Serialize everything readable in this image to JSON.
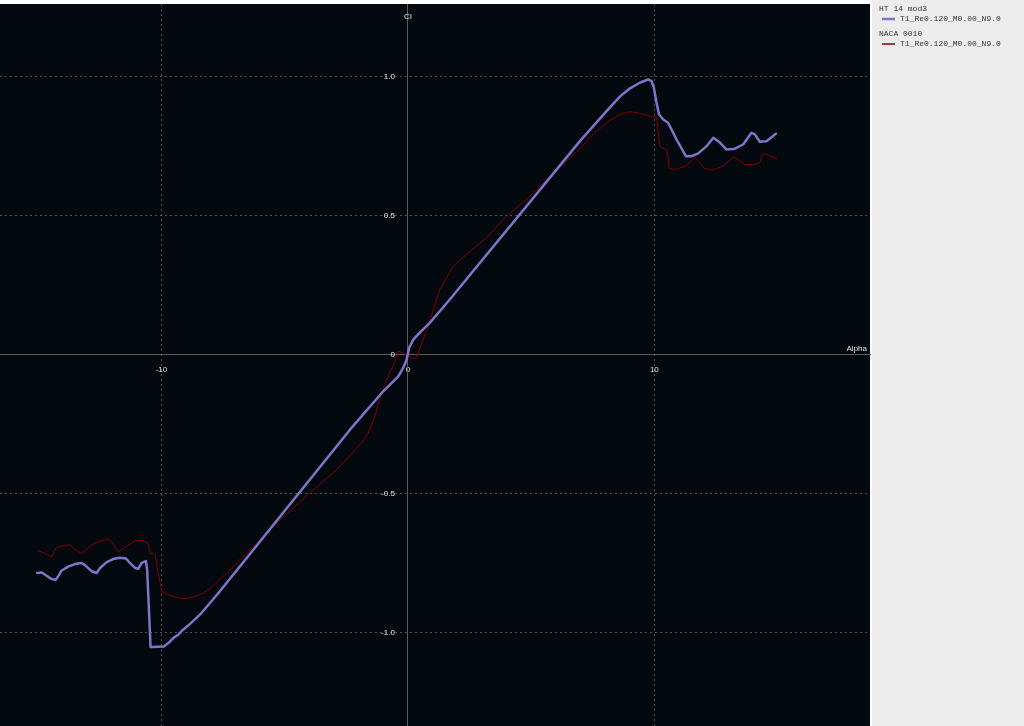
{
  "chart_data": {
    "type": "line",
    "xlabel": "Alpha",
    "ylabel": "Cl",
    "xlim": [
      -16.55,
      18.75
    ],
    "ylim": [
      -1.335,
      1.26
    ],
    "xticks": [
      -10,
      0,
      10
    ],
    "yticks": [
      {
        "value": -1,
        "label": "-1.0"
      },
      -0.5,
      0,
      0.5,
      {
        "value": 1,
        "label": "1.0"
      }
    ],
    "grid": true,
    "legend": "right",
    "marker": "none",
    "annotations": [
      "HT 14 mod3",
      "NACA 0010"
    ],
    "series": [
      {
        "name": "T1_Re0.120_M0.00_N9.0",
        "color": "#7d76c8",
        "x": [
          -15.04,
          -14.86,
          -14.66,
          -14.45,
          -14.28,
          -14.19,
          -14.05,
          -13.78,
          -13.51,
          -13.24,
          -13.03,
          -12.83,
          -12.63,
          -12.49,
          -12.22,
          -11.96,
          -11.68,
          -11.44,
          -11.28,
          -11.07,
          -10.94,
          -10.8,
          -10.63,
          -10.58,
          -10.44,
          -10.4,
          -9.9,
          -9.72,
          -9.52,
          -9.32,
          -9.12,
          -8.84,
          -8.44,
          -8.03,
          -7.63,
          -2.35,
          -1.0,
          -0.39,
          -0.19,
          -0.05,
          0.05,
          0.22,
          0.49,
          0.89,
          1.7,
          6.98,
          7.52,
          8.06,
          8.6,
          9.01,
          9.41,
          9.75,
          9.89,
          9.98,
          10.09,
          10.19,
          10.36,
          10.56,
          10.9,
          11.28,
          11.51,
          11.78,
          12.12,
          12.39,
          12.66,
          12.93,
          13.27,
          13.6,
          13.94,
          14.08,
          14.28,
          14.55,
          14.93
        ],
        "values": [
          -0.785,
          -0.783,
          -0.795,
          -0.807,
          -0.809,
          -0.797,
          -0.776,
          -0.762,
          -0.753,
          -0.749,
          -0.762,
          -0.779,
          -0.785,
          -0.767,
          -0.746,
          -0.735,
          -0.73,
          -0.733,
          -0.749,
          -0.767,
          -0.77,
          -0.749,
          -0.742,
          -0.773,
          -1.051,
          -1.051,
          -1.049,
          -1.037,
          -1.019,
          -1.007,
          -0.989,
          -0.968,
          -0.935,
          -0.893,
          -0.851,
          -0.27,
          -0.132,
          -0.078,
          -0.048,
          -0.018,
          0.024,
          0.054,
          0.08,
          0.114,
          0.198,
          0.767,
          0.821,
          0.875,
          0.927,
          0.957,
          0.977,
          0.989,
          0.983,
          0.959,
          0.905,
          0.863,
          0.845,
          0.833,
          0.773,
          0.713,
          0.713,
          0.723,
          0.749,
          0.779,
          0.762,
          0.737,
          0.74,
          0.755,
          0.797,
          0.791,
          0.765,
          0.767,
          0.794
        ]
      },
      {
        "name": "T1_Re0.120_M0.00_N9.0",
        "color": "#800000",
        "x": [
          -15.04,
          -14.86,
          -14.66,
          -14.43,
          -14.32,
          -14.12,
          -13.74,
          -13.51,
          -13.24,
          -13.03,
          -12.77,
          -12.43,
          -12.12,
          -11.96,
          -11.75,
          -11.41,
          -11.08,
          -10.74,
          -10.54,
          -10.44,
          -10.26,
          -10.13,
          -9.99,
          -9.72,
          -9.38,
          -9.05,
          -8.71,
          -8.3,
          -7.96,
          -7.63,
          -5.26,
          -3.98,
          -2.89,
          -1.88,
          -1.61,
          -1.34,
          -1.07,
          -0.86,
          -0.53,
          -0.39,
          -0.26,
          0.01,
          0.35,
          0.56,
          0.82,
          1.3,
          1.84,
          2.38,
          3.19,
          4.0,
          4.82,
          5.63,
          6.98,
          7.31,
          7.52,
          8.06,
          8.6,
          9.01,
          9.34,
          9.68,
          9.98,
          10.09,
          10.13,
          10.22,
          10.43,
          10.52,
          10.6,
          10.9,
          11.31,
          11.64,
          11.85,
          12.05,
          12.39,
          12.79,
          13.23,
          13.4,
          13.67,
          14.01,
          14.28,
          14.39,
          14.62,
          14.98
        ],
        "values": [
          -0.704,
          -0.71,
          -0.719,
          -0.726,
          -0.699,
          -0.69,
          -0.683,
          -0.699,
          -0.716,
          -0.699,
          -0.68,
          -0.668,
          -0.665,
          -0.68,
          -0.71,
          -0.69,
          -0.669,
          -0.668,
          -0.68,
          -0.716,
          -0.716,
          -0.785,
          -0.851,
          -0.863,
          -0.873,
          -0.877,
          -0.872,
          -0.857,
          -0.837,
          -0.809,
          -0.6,
          -0.497,
          -0.414,
          -0.318,
          -0.282,
          -0.222,
          -0.138,
          -0.09,
          -0.024,
          0.012,
          0.008,
          -0.006,
          -0.015,
          0.042,
          0.102,
          0.234,
          0.318,
          0.36,
          0.42,
          0.497,
          0.558,
          0.629,
          0.74,
          0.773,
          0.791,
          0.833,
          0.863,
          0.873,
          0.869,
          0.861,
          0.851,
          0.857,
          0.821,
          0.749,
          0.737,
          0.735,
          0.668,
          0.665,
          0.68,
          0.708,
          0.69,
          0.668,
          0.665,
          0.677,
          0.711,
          0.701,
          0.683,
          0.683,
          0.69,
          0.722,
          0.717,
          0.704
        ]
      }
    ]
  }
}
